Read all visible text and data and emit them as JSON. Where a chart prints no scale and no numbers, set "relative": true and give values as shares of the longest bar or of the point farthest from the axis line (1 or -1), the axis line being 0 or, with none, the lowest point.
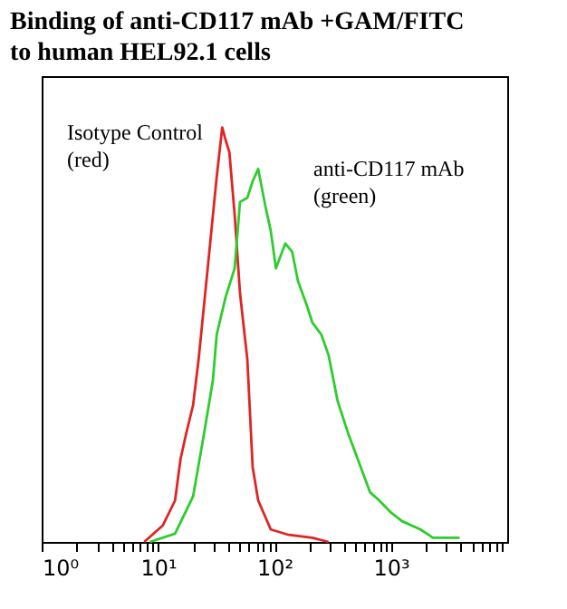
{
  "chart_data": {
    "type": "line",
    "title": "Binding of anti-CD117 mAb +GAM/FITC\nto human HEL92.1 cells",
    "relative": true,
    "log": "x",
    "tick_labels": "x",
    "xlim": [
      1,
      10000
    ],
    "xticks": [
      {
        "value": 1,
        "label": "10⁰"
      },
      {
        "value": 2,
        "label": null
      },
      {
        "value": 3,
        "label": null
      },
      {
        "value": 4,
        "label": null
      },
      {
        "value": 5,
        "label": null
      },
      {
        "value": 6,
        "label": null
      },
      {
        "value": 7,
        "label": null
      },
      {
        "value": 8,
        "label": null
      },
      {
        "value": 9,
        "label": null
      },
      {
        "value": 10,
        "label": "10¹"
      },
      {
        "value": 20,
        "label": null
      },
      {
        "value": 30,
        "label": null
      },
      {
        "value": 40,
        "label": null
      },
      {
        "value": 50,
        "label": null
      },
      {
        "value": 60,
        "label": null
      },
      {
        "value": 70,
        "label": null
      },
      {
        "value": 80,
        "label": null
      },
      {
        "value": 90,
        "label": null
      },
      {
        "value": 100,
        "label": "10²"
      },
      {
        "value": 200,
        "label": null
      },
      {
        "value": 300,
        "label": null
      },
      {
        "value": 400,
        "label": null
      },
      {
        "value": 500,
        "label": null
      },
      {
        "value": 600,
        "label": null
      },
      {
        "value": 700,
        "label": null
      },
      {
        "value": 800,
        "label": null
      },
      {
        "value": 900,
        "label": null
      },
      {
        "value": 1000,
        "label": "10³"
      },
      {
        "value": 2000,
        "label": null
      },
      {
        "value": 3000,
        "label": null
      },
      {
        "value": 4000,
        "label": null
      },
      {
        "value": 5000,
        "label": null
      },
      {
        "value": 6000,
        "label": null
      },
      {
        "value": 7000,
        "label": null
      },
      {
        "value": 8000,
        "label": null
      },
      {
        "value": 9000,
        "label": null
      }
    ],
    "annotations": [
      "Isotype Control\n(red)",
      "anti-CD117 mAb\n(green)"
    ],
    "series": [
      {
        "color": "#e02424",
        "x": [
          7.6,
          11,
          14,
          15.6,
          17.4,
          20,
          22.3,
          26.7,
          31.9,
          35.6,
          38,
          41,
          45.5,
          50.6,
          58.5,
          65,
          72.5,
          93,
          133,
          211,
          292
        ],
        "values": [
          0,
          0.04,
          0.1,
          0.2,
          0.26,
          0.33,
          0.44,
          0.66,
          0.88,
          1,
          0.97,
          0.94,
          0.79,
          0.6,
          0.44,
          0.18,
          0.1,
          0.03,
          0.017,
          0.01,
          0
        ]
      },
      {
        "color": "#2ecc2e",
        "x": [
          8.5,
          14,
          20,
          24.8,
          29.6,
          31.9,
          38,
          45.5,
          50.6,
          58.5,
          65,
          72.5,
          83.6,
          93,
          103,
          124,
          142,
          159,
          190,
          211,
          253,
          292,
          349,
          432,
          552,
          662,
          795,
          1010,
          1250,
          1800,
          2300,
          3900
        ],
        "values": [
          0,
          0.02,
          0.11,
          0.26,
          0.39,
          0.5,
          0.59,
          0.66,
          0.82,
          0.83,
          0.87,
          0.9,
          0.81,
          0.75,
          0.66,
          0.72,
          0.7,
          0.63,
          0.57,
          0.53,
          0.5,
          0.45,
          0.34,
          0.26,
          0.18,
          0.12,
          0.1,
          0.07,
          0.05,
          0.03,
          0.01,
          0.01
        ]
      }
    ]
  }
}
